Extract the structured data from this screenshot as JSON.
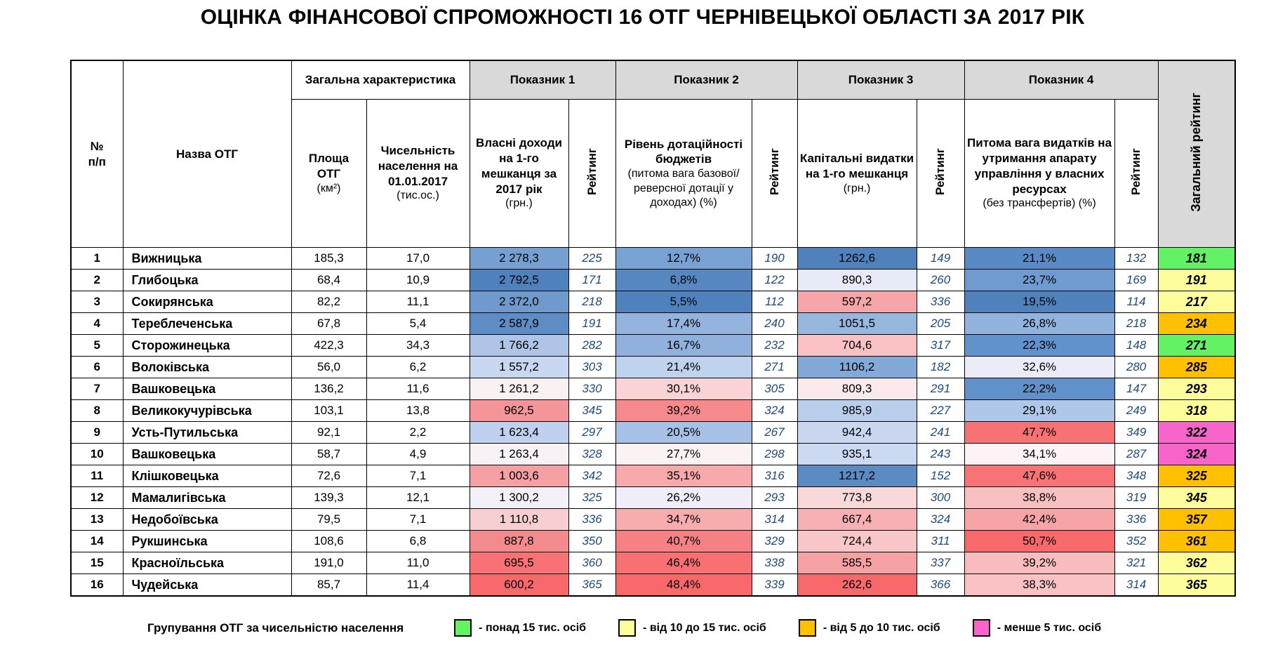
{
  "title": "ОЦІНКА ФІНАНСОВОЇ СПРОМОЖНОСТІ 16 ОТГ ЧЕРНІВЕЦЬКОЇ ОБЛАСТІ ЗА 2017 РІК",
  "colors": {
    "header_gray": "#D9D9D9",
    "rating_text": "#1F497D",
    "scale_best_blue": "#4F81BD",
    "scale_worst_red": "#F8696B",
    "group_green": "#63F263",
    "group_yellow": "#FDFD9B",
    "group_orange": "#FFC000",
    "group_magenta": "#F964CB"
  },
  "table": {
    "headers": {
      "num": "№\nп/п",
      "name": "Назва ОТГ",
      "general": "Загальна характеристика",
      "area_label": "Площа ОТГ",
      "area_unit": "(км²)",
      "population_label": "Чисельність населення на 01.01.2017",
      "population_unit": "(тис.ос.)",
      "indicator1": "Показник 1",
      "indicator2": "Показник 2",
      "indicator3": "Показник 3",
      "indicator4": "Показник 4",
      "p1_label": "Власні доходи на 1-го мешканця за 2017 рік",
      "p1_unit": "(грн.)",
      "p2_label": "Рівень дотаційності бюджетів",
      "p2_note": "(питома вага базової/ реверсної дотації у доходах) (%)",
      "p3_label": "Капітальні видатки на 1-го мешканця",
      "p3_unit": "(грн.)",
      "p4_label": "Питома вага видатків на утримання апарату управління у власних ресурсах",
      "p4_note": "(без трансфертів) (%)",
      "rating": "Рейтинг",
      "overall": "Загальний рейтинг"
    },
    "rows": [
      {
        "num": "1",
        "name": "Вижницька",
        "area": "185,3",
        "population": "17,0",
        "p1": {
          "v": "2 278,3",
          "bg": "#76A0D1",
          "r": "225"
        },
        "p2": {
          "v": "12,7%",
          "bg": "#79A2D4",
          "r": "190"
        },
        "p3": {
          "v": "1262,6",
          "bg": "#4F81BD",
          "r": "149"
        },
        "p4": {
          "v": "21,1%",
          "bg": "#5A8AC6",
          "r": "132"
        },
        "overall": {
          "v": "181",
          "bg": "#63F263"
        }
      },
      {
        "num": "2",
        "name": "Глибоцька",
        "area": "68,4",
        "population": "10,9",
        "p1": {
          "v": "2 792,5",
          "bg": "#4F81BD",
          "r": "171"
        },
        "p2": {
          "v": "6,8%",
          "bg": "#5787C1",
          "r": "122"
        },
        "p3": {
          "v": "890,3",
          "bg": "#E7EAF7",
          "r": "260"
        },
        "p4": {
          "v": "23,7%",
          "bg": "#6F9BD1",
          "r": "169"
        },
        "overall": {
          "v": "191",
          "bg": "#FDFD9B"
        }
      },
      {
        "num": "3",
        "name": "Сокирянська",
        "area": "82,2",
        "population": "11,1",
        "p1": {
          "v": "2 372,0",
          "bg": "#6E9ACD",
          "r": "218"
        },
        "p2": {
          "v": "5,5%",
          "bg": "#4F81BD",
          "r": "112"
        },
        "p3": {
          "v": "597,2",
          "bg": "#F6A5A8",
          "r": "336"
        },
        "p4": {
          "v": "19,5%",
          "bg": "#4F81BD",
          "r": "114"
        },
        "overall": {
          "v": "217",
          "bg": "#FDFD9B"
        }
      },
      {
        "num": "4",
        "name": "Тереблеченська",
        "area": "67,8",
        "population": "5,4",
        "p1": {
          "v": "2 587,9",
          "bg": "#5E8CC5",
          "r": "191"
        },
        "p2": {
          "v": "17,4%",
          "bg": "#94B4DE",
          "r": "240"
        },
        "p3": {
          "v": "1051,5",
          "bg": "#98B7DF",
          "r": "205"
        },
        "p4": {
          "v": "26,8%",
          "bg": "#92B3DE",
          "r": "218"
        },
        "overall": {
          "v": "234",
          "bg": "#FFC000"
        }
      },
      {
        "num": "5",
        "name": "Сторожинецька",
        "area": "422,3",
        "population": "34,3",
        "p1": {
          "v": "1 766,2",
          "bg": "#AFC5E8",
          "r": "282"
        },
        "p2": {
          "v": "16,7%",
          "bg": "#90B1DC",
          "r": "232"
        },
        "p3": {
          "v": "704,6",
          "bg": "#F9C1C3",
          "r": "317"
        },
        "p4": {
          "v": "22,3%",
          "bg": "#6292CB",
          "r": "148"
        },
        "overall": {
          "v": "271",
          "bg": "#63F263"
        }
      },
      {
        "num": "6",
        "name": "Волоківська",
        "area": "56,0",
        "population": "6,2",
        "p1": {
          "v": "1 557,2",
          "bg": "#C8D8F1",
          "r": "303"
        },
        "p2": {
          "v": "21,4%",
          "bg": "#C0D3EE",
          "r": "271"
        },
        "p3": {
          "v": "1106,2",
          "bg": "#82A9D7",
          "r": "182"
        },
        "p4": {
          "v": "32,6%",
          "bg": "#EBECF8",
          "r": "280"
        },
        "overall": {
          "v": "285",
          "bg": "#FFC000"
        }
      },
      {
        "num": "7",
        "name": "Вашковецька",
        "area": "136,2",
        "population": "11,6",
        "p1": {
          "v": "1 261,2",
          "bg": "#FAF1F3",
          "r": "330"
        },
        "p2": {
          "v": "30,1%",
          "bg": "#F9D3D5",
          "r": "305"
        },
        "p3": {
          "v": "809,3",
          "bg": "#FBEAEC",
          "r": "291"
        },
        "p4": {
          "v": "22,2%",
          "bg": "#6191CA",
          "r": "147"
        },
        "overall": {
          "v": "293",
          "bg": "#FDFD9B"
        }
      },
      {
        "num": "8",
        "name": "Великокучурівська",
        "area": "103,1",
        "population": "13,8",
        "p1": {
          "v": "962,5",
          "bg": "#F49699",
          "r": "345"
        },
        "p2": {
          "v": "39,2%",
          "bg": "#F5898C",
          "r": "324"
        },
        "p3": {
          "v": "985,9",
          "bg": "#B9CEEB",
          "r": "227"
        },
        "p4": {
          "v": "29,1%",
          "bg": "#AFC7E8",
          "r": "249"
        },
        "overall": {
          "v": "318",
          "bg": "#FDFD9B"
        }
      },
      {
        "num": "9",
        "name": "Усть-Путильська",
        "area": "92,1",
        "population": "2,2",
        "p1": {
          "v": "1 623,4",
          "bg": "#BFD1EE",
          "r": "297"
        },
        "p2": {
          "v": "20,5%",
          "bg": "#A7C1E6",
          "r": "267"
        },
        "p3": {
          "v": "942,4",
          "bg": "#C9D8F0",
          "r": "241"
        },
        "p4": {
          "v": "47,7%",
          "bg": "#F87275",
          "r": "349"
        },
        "overall": {
          "v": "322",
          "bg": "#F964CB"
        }
      },
      {
        "num": "10",
        "name": "Вашковецька",
        "area": "58,7",
        "population": "4,9",
        "p1": {
          "v": "1 263,4",
          "bg": "#F8F1F5",
          "r": "328"
        },
        "p2": {
          "v": "27,7%",
          "bg": "#FBF2F4",
          "r": "298"
        },
        "p3": {
          "v": "935,1",
          "bg": "#CBD9F1",
          "r": "243"
        },
        "p4": {
          "v": "34,1%",
          "bg": "#FBF3F5",
          "r": "287"
        },
        "overall": {
          "v": "324",
          "bg": "#F964CB"
        }
      },
      {
        "num": "11",
        "name": "Клішковецька",
        "area": "72,6",
        "population": "7,1",
        "p1": {
          "v": "1 003,6",
          "bg": "#F5A0A3",
          "r": "342"
        },
        "p2": {
          "v": "35,1%",
          "bg": "#F7A9AB",
          "r": "316"
        },
        "p3": {
          "v": "1217,2",
          "bg": "#5C8BC4",
          "r": "152"
        },
        "p4": {
          "v": "47,6%",
          "bg": "#F87376",
          "r": "348"
        },
        "overall": {
          "v": "325",
          "bg": "#FFC000"
        }
      },
      {
        "num": "12",
        "name": "Мамалигівська",
        "area": "139,3",
        "population": "12,1",
        "p1": {
          "v": "1 300,2",
          "bg": "#F3F0F8",
          "r": "325"
        },
        "p2": {
          "v": "26,2%",
          "bg": "#EFEEF9",
          "r": "293"
        },
        "p3": {
          "v": "773,8",
          "bg": "#F9D8DA",
          "r": "300"
        },
        "p4": {
          "v": "38,8%",
          "bg": "#F9C0C2",
          "r": "319"
        },
        "overall": {
          "v": "345",
          "bg": "#FDFD9B"
        }
      },
      {
        "num": "13",
        "name": "Недобоївська",
        "area": "79,5",
        "population": "7,1",
        "p1": {
          "v": "1 110,8",
          "bg": "#F8CFD1",
          "r": "336"
        },
        "p2": {
          "v": "34,7%",
          "bg": "#F7ACAE",
          "r": "314"
        },
        "p3": {
          "v": "667,4",
          "bg": "#F7B1B4",
          "r": "324"
        },
        "p4": {
          "v": "42,4%",
          "bg": "#F7A4A7",
          "r": "336"
        },
        "overall": {
          "v": "357",
          "bg": "#FFC000"
        }
      },
      {
        "num": "14",
        "name": "Рукшинська",
        "area": "108,6",
        "population": "6,8",
        "p1": {
          "v": "887,8",
          "bg": "#F38B8E",
          "r": "350"
        },
        "p2": {
          "v": "40,7%",
          "bg": "#F58184",
          "r": "329"
        },
        "p3": {
          "v": "724,4",
          "bg": "#F9C7C9",
          "r": "311"
        },
        "p4": {
          "v": "50,7%",
          "bg": "#F8696B",
          "r": "352"
        },
        "overall": {
          "v": "361",
          "bg": "#FFC000"
        }
      },
      {
        "num": "15",
        "name": "Красноїльська",
        "area": "191,0",
        "population": "11,0",
        "p1": {
          "v": "695,5",
          "bg": "#F87174",
          "r": "360"
        },
        "p2": {
          "v": "46,4%",
          "bg": "#F87072",
          "r": "338"
        },
        "p3": {
          "v": "585,5",
          "bg": "#F6A2A5",
          "r": "337"
        },
        "p4": {
          "v": "39,2%",
          "bg": "#F9BDBF",
          "r": "321"
        },
        "overall": {
          "v": "362",
          "bg": "#FDFD9B"
        }
      },
      {
        "num": "16",
        "name": "Чудейська",
        "area": "85,7",
        "population": "11,4",
        "p1": {
          "v": "600,2",
          "bg": "#F8696B",
          "r": "365"
        },
        "p2": {
          "v": "48,4%",
          "bg": "#F8696B",
          "r": "339"
        },
        "p3": {
          "v": "262,6",
          "bg": "#F8696B",
          "r": "366"
        },
        "p4": {
          "v": "38,3%",
          "bg": "#F9C3C5",
          "r": "314"
        },
        "overall": {
          "v": "365",
          "bg": "#FDFD9B"
        }
      }
    ]
  },
  "legend": {
    "label": "Групування ОТГ за чисельністю населення",
    "items": [
      {
        "color": "#63F263",
        "text": "- понад 15 тис. осіб"
      },
      {
        "color": "#FDFD9B",
        "text": "- від 10 до 15 тис. осіб"
      },
      {
        "color": "#FFC000",
        "text": "- від 5 до 10 тис. осіб"
      },
      {
        "color": "#F964CB",
        "text": "- менше 5 тис. осіб"
      }
    ]
  }
}
